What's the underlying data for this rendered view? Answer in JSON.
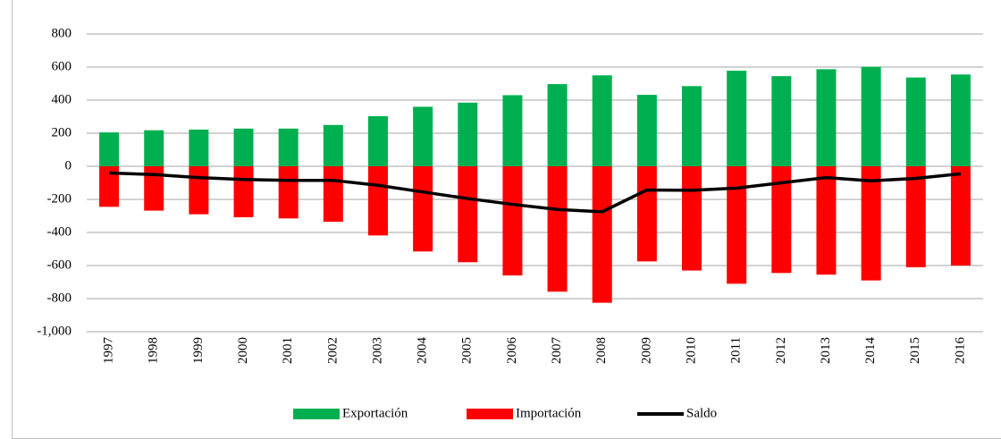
{
  "chart_data": {
    "type": "bar",
    "categories": [
      "1997",
      "1998",
      "1999",
      "2000",
      "2001",
      "2002",
      "2003",
      "2004",
      "2005",
      "2006",
      "2007",
      "2008",
      "2009",
      "2010",
      "2011",
      "2012",
      "2013",
      "2014",
      "2015",
      "2016"
    ],
    "series": [
      {
        "name": "Exportación",
        "color": "#00b050",
        "type": "bar",
        "values": [
          205,
          218,
          222,
          228,
          228,
          250,
          303,
          360,
          385,
          430,
          497,
          550,
          432,
          485,
          578,
          545,
          587,
          602,
          537,
          555
        ]
      },
      {
        "name": "Importación",
        "color": "#ff0000",
        "type": "bar",
        "values": [
          -245,
          -268,
          -290,
          -308,
          -315,
          -335,
          -418,
          -515,
          -580,
          -660,
          -758,
          -825,
          -575,
          -630,
          -710,
          -645,
          -655,
          -690,
          -610,
          -600
        ]
      },
      {
        "name": "Saldo",
        "color": "#000000",
        "type": "line",
        "values": [
          -40,
          -50,
          -68,
          -80,
          -85,
          -85,
          -115,
          -155,
          -195,
          -230,
          -261,
          -275,
          -143,
          -145,
          -132,
          -100,
          -68,
          -88,
          -73,
          -45
        ]
      }
    ],
    "ylim": [
      -1000,
      800
    ],
    "yticks": [
      {
        "value": -1000,
        "label": "-1,000"
      },
      -800,
      -600,
      -400,
      -200,
      0,
      200,
      400,
      600,
      800
    ],
    "grid": true,
    "legend": "bottom"
  }
}
